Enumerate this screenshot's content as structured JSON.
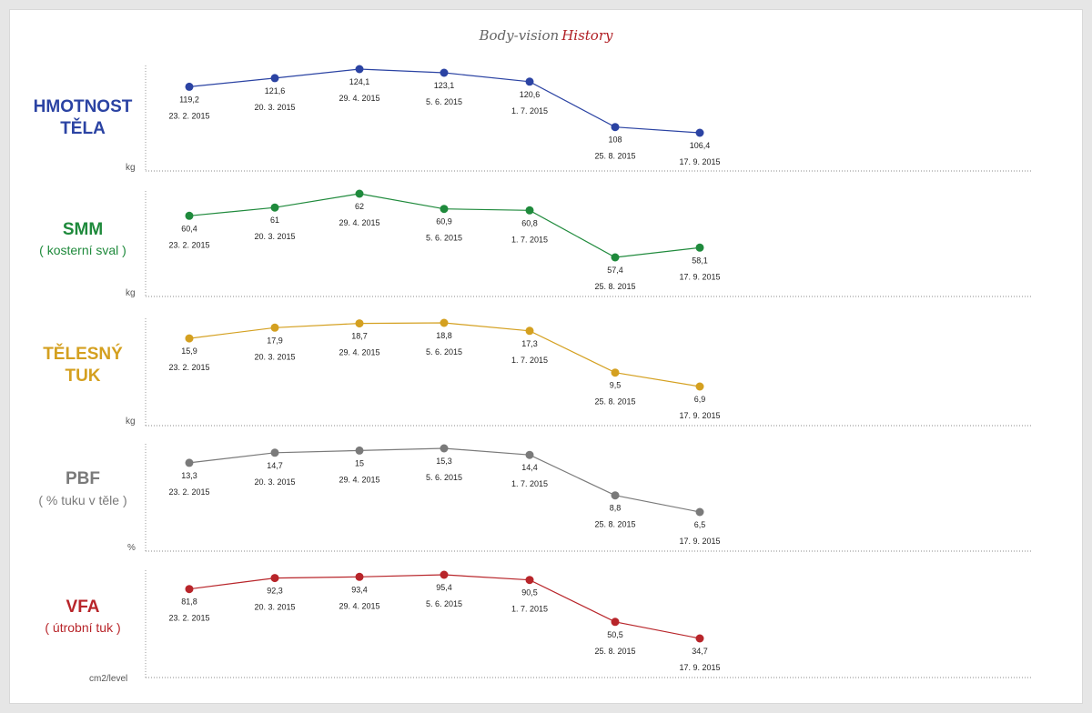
{
  "title": {
    "part1": "Body-vision",
    "part2": "History"
  },
  "chart_data": [
    {
      "type": "line",
      "label_line1": "HMOTNOST",
      "label_line2": "TĚLA",
      "sublabel": "",
      "unit": "kg",
      "color": "#2b43a3",
      "dates": [
        "23. 2. 2015",
        "20. 3. 2015",
        "29. 4. 2015",
        "5. 6. 2015",
        "1. 7. 2015",
        "25. 8. 2015",
        "17. 9. 2015"
      ],
      "values": [
        119.2,
        121.6,
        124.1,
        123.1,
        120.6,
        108,
        106.4
      ],
      "value_labels": [
        "119,2",
        "121,6",
        "124,1",
        "123,1",
        "120,6",
        "108",
        "106,4"
      ]
    },
    {
      "type": "line",
      "label_line1": "SMM",
      "label_line2": "",
      "sublabel": "( kosterní sval )",
      "unit": "kg",
      "color": "#1f8a3c",
      "dates": [
        "23. 2. 2015",
        "20. 3. 2015",
        "29. 4. 2015",
        "5. 6. 2015",
        "1. 7. 2015",
        "25. 8. 2015",
        "17. 9. 2015"
      ],
      "values": [
        60.4,
        61,
        62,
        60.9,
        60.8,
        57.4,
        58.1
      ],
      "value_labels": [
        "60,4",
        "61",
        "62",
        "60,9",
        "60,8",
        "57,4",
        "58,1"
      ]
    },
    {
      "type": "line",
      "label_line1": "TĚLESNÝ",
      "label_line2": "TUK",
      "sublabel": "",
      "unit": "kg",
      "color": "#d4a020",
      "dates": [
        "23. 2. 2015",
        "20. 3. 2015",
        "29. 4. 2015",
        "5. 6. 2015",
        "1. 7. 2015",
        "25. 8. 2015",
        "17. 9. 2015"
      ],
      "values": [
        15.9,
        17.9,
        18.7,
        18.8,
        17.3,
        9.5,
        6.9
      ],
      "value_labels": [
        "15,9",
        "17,9",
        "18,7",
        "18,8",
        "17,3",
        "9,5",
        "6,9"
      ]
    },
    {
      "type": "line",
      "label_line1": "PBF",
      "label_line2": "",
      "sublabel": "( % tuku v těle )",
      "unit": "%",
      "color": "#7a7a7a",
      "dates": [
        "23. 2. 2015",
        "20. 3. 2015",
        "29. 4. 2015",
        "5. 6. 2015",
        "1. 7. 2015",
        "25. 8. 2015",
        "17. 9. 2015"
      ],
      "values": [
        13.3,
        14.7,
        15,
        15.3,
        14.4,
        8.8,
        6.5
      ],
      "value_labels": [
        "13,3",
        "14,7",
        "15",
        "15,3",
        "14,4",
        "8,8",
        "6,5"
      ]
    },
    {
      "type": "line",
      "label_line1": "VFA",
      "label_line2": "",
      "sublabel": "( útrobní tuk )",
      "unit": "cm2/level",
      "color": "#b8252a",
      "dates": [
        "23. 2. 2015",
        "20. 3. 2015",
        "29. 4. 2015",
        "5. 6. 2015",
        "1. 7. 2015",
        "25. 8. 2015",
        "17. 9. 2015"
      ],
      "values": [
        81.8,
        92.3,
        93.4,
        95.4,
        90.5,
        50.5,
        34.7
      ],
      "value_labels": [
        "81,8",
        "92,3",
        "93,4",
        "95,4",
        "90,5",
        "50,5",
        "34,7"
      ]
    }
  ]
}
